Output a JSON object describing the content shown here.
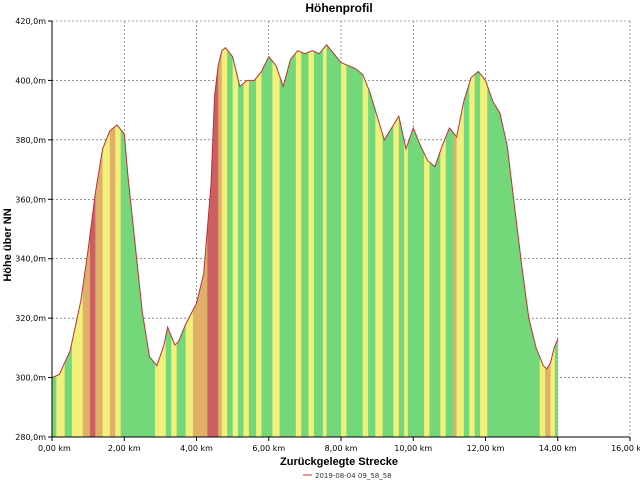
{
  "chart_data": {
    "type": "area",
    "title": "Höhenprofil",
    "xlabel": "Zurückgelegte Strecke",
    "ylabel": "Höhe über NN",
    "xlim": [
      0,
      16
    ],
    "ylim": [
      280,
      420
    ],
    "x_ticks": [
      "0,00 km",
      "2,00 km",
      "4,00 km",
      "6,00 km",
      "8,00 km",
      "10,00 km",
      "12,00 km",
      "14,00 km",
      "16,00 km"
    ],
    "y_ticks": [
      "280,0m",
      "300,0m",
      "320,0m",
      "340,0m",
      "360,0m",
      "380,0m",
      "400,0m",
      "420,0m"
    ],
    "grid": true,
    "legend_position": "bottom",
    "series": [
      {
        "name": "2019-08-04 09_58_58",
        "color": "#c03030",
        "x": [
          0.0,
          0.2,
          0.5,
          0.8,
          1.0,
          1.2,
          1.4,
          1.6,
          1.8,
          2.0,
          2.1,
          2.3,
          2.5,
          2.7,
          2.9,
          3.1,
          3.2,
          3.3,
          3.4,
          3.5,
          3.7,
          4.0,
          4.2,
          4.4,
          4.5,
          4.6,
          4.7,
          4.8,
          5.0,
          5.2,
          5.4,
          5.6,
          5.8,
          6.0,
          6.2,
          6.4,
          6.6,
          6.8,
          7.0,
          7.2,
          7.4,
          7.6,
          7.8,
          8.0,
          8.2,
          8.4,
          8.6,
          8.8,
          9.0,
          9.2,
          9.4,
          9.6,
          9.8,
          10.0,
          10.2,
          10.4,
          10.6,
          10.8,
          11.0,
          11.2,
          11.4,
          11.6,
          11.8,
          12.0,
          12.2,
          12.4,
          12.6,
          12.8,
          13.0,
          13.2,
          13.4,
          13.6,
          13.7,
          13.8,
          13.9,
          14.0
        ],
        "y": [
          300,
          301,
          309,
          326,
          343,
          362,
          377,
          383,
          385,
          382,
          368,
          345,
          322,
          307,
          304,
          311,
          317,
          314,
          311,
          312,
          318,
          325,
          335,
          365,
          395,
          405,
          410,
          411,
          408,
          398,
          400,
          400,
          403,
          408,
          405,
          398,
          407,
          410,
          409,
          410,
          409,
          412,
          409,
          406,
          405,
          404,
          402,
          396,
          388,
          380,
          384,
          388,
          377,
          384,
          378,
          373,
          371,
          378,
          384,
          381,
          393,
          401,
          403,
          400,
          393,
          389,
          378,
          358,
          338,
          320,
          310,
          304,
          303,
          305,
          310,
          313
        ]
      }
    ],
    "color_bands": {
      "palette": {
        "g": "#74d87a",
        "y": "#f0f07a",
        "o": "#e0b06a",
        "r": "#cc6060"
      },
      "bands": [
        {
          "x0": 0.0,
          "x1": 0.12,
          "c": "g"
        },
        {
          "x0": 0.12,
          "x1": 0.35,
          "c": "y"
        },
        {
          "x0": 0.35,
          "x1": 0.55,
          "c": "g"
        },
        {
          "x0": 0.55,
          "x1": 0.85,
          "c": "y"
        },
        {
          "x0": 0.85,
          "x1": 1.05,
          "c": "o"
        },
        {
          "x0": 1.05,
          "x1": 1.2,
          "c": "r"
        },
        {
          "x0": 1.2,
          "x1": 1.4,
          "c": "o"
        },
        {
          "x0": 1.4,
          "x1": 1.6,
          "c": "y"
        },
        {
          "x0": 1.6,
          "x1": 1.75,
          "c": "o"
        },
        {
          "x0": 1.75,
          "x1": 1.9,
          "c": "y"
        },
        {
          "x0": 1.9,
          "x1": 2.05,
          "c": "g"
        },
        {
          "x0": 2.05,
          "x1": 2.3,
          "c": "g"
        },
        {
          "x0": 2.3,
          "x1": 2.85,
          "c": "g"
        },
        {
          "x0": 2.85,
          "x1": 2.95,
          "c": "y"
        },
        {
          "x0": 2.95,
          "x1": 3.15,
          "c": "y"
        },
        {
          "x0": 3.15,
          "x1": 3.3,
          "c": "g"
        },
        {
          "x0": 3.3,
          "x1": 3.45,
          "c": "y"
        },
        {
          "x0": 3.45,
          "x1": 3.7,
          "c": "g"
        },
        {
          "x0": 3.7,
          "x1": 3.9,
          "c": "y"
        },
        {
          "x0": 3.9,
          "x1": 4.1,
          "c": "o"
        },
        {
          "x0": 4.1,
          "x1": 4.3,
          "c": "o"
        },
        {
          "x0": 4.3,
          "x1": 4.6,
          "c": "r"
        },
        {
          "x0": 4.6,
          "x1": 4.7,
          "c": "o"
        },
        {
          "x0": 4.7,
          "x1": 4.85,
          "c": "y"
        },
        {
          "x0": 4.85,
          "x1": 5.0,
          "c": "g"
        },
        {
          "x0": 5.0,
          "x1": 5.15,
          "c": "y"
        },
        {
          "x0": 5.15,
          "x1": 5.3,
          "c": "g"
        },
        {
          "x0": 5.3,
          "x1": 5.45,
          "c": "y"
        },
        {
          "x0": 5.45,
          "x1": 5.65,
          "c": "g"
        },
        {
          "x0": 5.65,
          "x1": 5.8,
          "c": "y"
        },
        {
          "x0": 5.8,
          "x1": 6.1,
          "c": "g"
        },
        {
          "x0": 6.1,
          "x1": 6.3,
          "c": "y"
        },
        {
          "x0": 6.3,
          "x1": 6.55,
          "c": "g"
        },
        {
          "x0": 6.55,
          "x1": 6.75,
          "c": "g"
        },
        {
          "x0": 6.75,
          "x1": 6.9,
          "c": "y"
        },
        {
          "x0": 6.9,
          "x1": 7.1,
          "c": "g"
        },
        {
          "x0": 7.1,
          "x1": 7.25,
          "c": "y"
        },
        {
          "x0": 7.25,
          "x1": 7.5,
          "c": "g"
        },
        {
          "x0": 7.5,
          "x1": 7.6,
          "c": "y"
        },
        {
          "x0": 7.6,
          "x1": 8.0,
          "c": "g"
        },
        {
          "x0": 8.0,
          "x1": 8.15,
          "c": "y"
        },
        {
          "x0": 8.15,
          "x1": 8.6,
          "c": "g"
        },
        {
          "x0": 8.6,
          "x1": 8.75,
          "c": "y"
        },
        {
          "x0": 8.75,
          "x1": 8.95,
          "c": "g"
        },
        {
          "x0": 8.95,
          "x1": 9.15,
          "c": "y"
        },
        {
          "x0": 9.15,
          "x1": 9.45,
          "c": "g"
        },
        {
          "x0": 9.45,
          "x1": 9.6,
          "c": "y"
        },
        {
          "x0": 9.6,
          "x1": 9.75,
          "c": "g"
        },
        {
          "x0": 9.75,
          "x1": 9.85,
          "c": "y"
        },
        {
          "x0": 9.85,
          "x1": 10.05,
          "c": "g"
        },
        {
          "x0": 10.05,
          "x1": 10.3,
          "c": "g"
        },
        {
          "x0": 10.3,
          "x1": 10.45,
          "c": "y"
        },
        {
          "x0": 10.45,
          "x1": 10.75,
          "c": "g"
        },
        {
          "x0": 10.75,
          "x1": 10.9,
          "c": "y"
        },
        {
          "x0": 10.9,
          "x1": 11.1,
          "c": "g"
        },
        {
          "x0": 11.1,
          "x1": 11.2,
          "c": "o"
        },
        {
          "x0": 11.2,
          "x1": 11.4,
          "c": "y"
        },
        {
          "x0": 11.4,
          "x1": 11.55,
          "c": "g"
        },
        {
          "x0": 11.55,
          "x1": 11.7,
          "c": "y"
        },
        {
          "x0": 11.7,
          "x1": 11.85,
          "c": "g"
        },
        {
          "x0": 11.85,
          "x1": 12.05,
          "c": "y"
        },
        {
          "x0": 12.05,
          "x1": 13.2,
          "c": "g"
        },
        {
          "x0": 13.2,
          "x1": 13.5,
          "c": "g"
        },
        {
          "x0": 13.5,
          "x1": 13.65,
          "c": "y"
        },
        {
          "x0": 13.65,
          "x1": 13.8,
          "c": "o"
        },
        {
          "x0": 13.8,
          "x1": 13.92,
          "c": "y"
        },
        {
          "x0": 13.92,
          "x1": 14.0,
          "c": "g"
        }
      ]
    }
  }
}
